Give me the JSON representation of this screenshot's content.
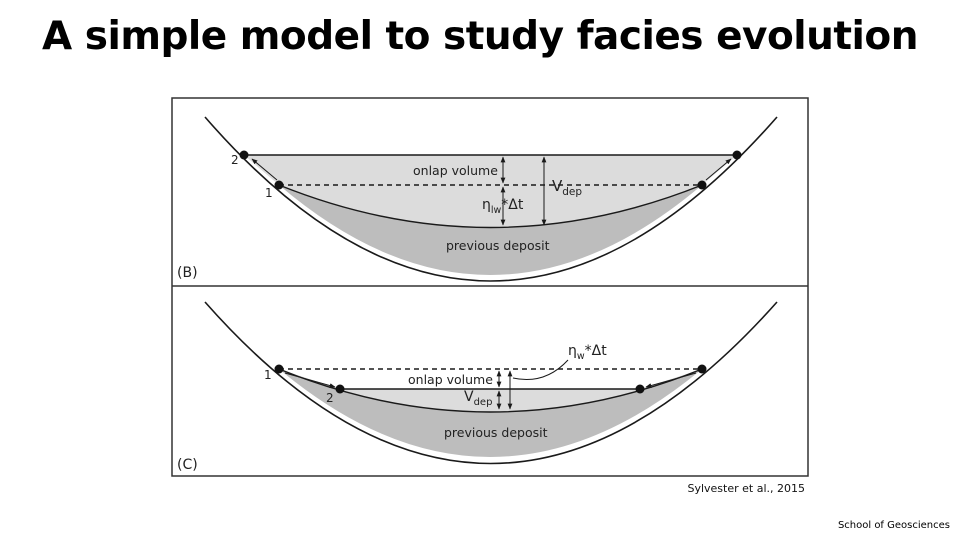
{
  "title": "A simple model to study facies evolution",
  "panel_b": {
    "tag": "(B)",
    "onlap_label": "onlap volume",
    "vdep_main": "V",
    "vdep_sub": "dep",
    "eta_main": "η",
    "eta_sub": "lw",
    "eta_rest": "*Δt",
    "deposit_label": "previous deposit",
    "point_1": "1",
    "point_2": "2"
  },
  "panel_c": {
    "tag": "(C)",
    "onlap_label": "onlap volume",
    "vdep_main": "V",
    "vdep_sub": "dep",
    "eta_main": "η",
    "eta_sub": "w",
    "eta_rest": "*Δt",
    "deposit_label": "previous deposit",
    "point_1": "1",
    "point_2": "2"
  },
  "citation": "Sylvester et al., 2015",
  "footer": "School of Geosciences",
  "colors": {
    "light_fill": "#dcdcdc",
    "dark_fill": "#bdbdbd",
    "line": "#1a1a1a"
  }
}
